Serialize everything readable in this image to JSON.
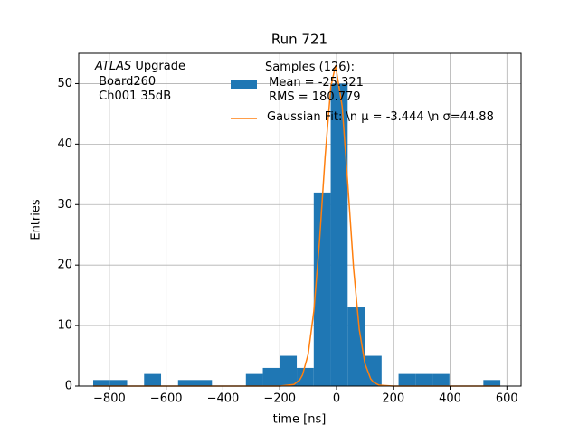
{
  "chart_data": {
    "type": "histogram",
    "title": "Run 721",
    "xlabel": "time [ns]",
    "ylabel": "Entries",
    "bins": [
      -857,
      -797.25,
      -737.5,
      -677.75,
      -618,
      -558.25,
      -498.5,
      -438.75,
      -379,
      -319.25,
      -259.5,
      -199.75,
      -140,
      -80.25,
      -20.5,
      39.25,
      99,
      158.75,
      218.5,
      278.25,
      338,
      397.75,
      457.5,
      517.25,
      577
    ],
    "counts": [
      1,
      1,
      0,
      2,
      0,
      1,
      1,
      0,
      0,
      2,
      3,
      5,
      3,
      32,
      50,
      13,
      5,
      0,
      2,
      2,
      2,
      0,
      0,
      1
    ],
    "color": "#1f77b4",
    "label": "Samples (126):\n Mean = -25.321\n RMS = 180.779",
    "fit": {
      "type": "line",
      "name": "Gaussian Fit: \\n μ = -3.444 \\n σ=44.88",
      "color": "#ff7f0e",
      "x": [
        -857,
        -300,
        -200,
        -150,
        -130,
        -120,
        -100,
        -80,
        -60,
        -40,
        -20,
        -3.444,
        20,
        40,
        60,
        80,
        100,
        120,
        130,
        150,
        200,
        300,
        577
      ],
      "values": [
        0,
        0,
        0,
        0.26,
        0.99,
        1.81,
        5.23,
        12.36,
        23.9,
        38.0,
        49.5,
        53,
        46.2,
        33.2,
        19.5,
        9.41,
        3.73,
        1.21,
        0.64,
        0.15,
        0,
        0,
        0
      ]
    },
    "xlim": [
      -908,
      650
    ],
    "ylim": [
      0,
      55
    ],
    "xticks": [
      {
        "value": -800,
        "label": "−800"
      },
      {
        "value": -600,
        "label": "−600"
      },
      {
        "value": -400,
        "label": "−400"
      },
      {
        "value": -200,
        "label": "−200"
      },
      0,
      200,
      400,
      600
    ],
    "yticks": [
      0,
      10,
      20,
      30,
      40,
      50
    ],
    "grid": true,
    "legend": "upper center",
    "annotation": {
      "emphasis": "ATLAS",
      "rest": " Upgrade\n Board260\n Ch001 35dB"
    }
  }
}
